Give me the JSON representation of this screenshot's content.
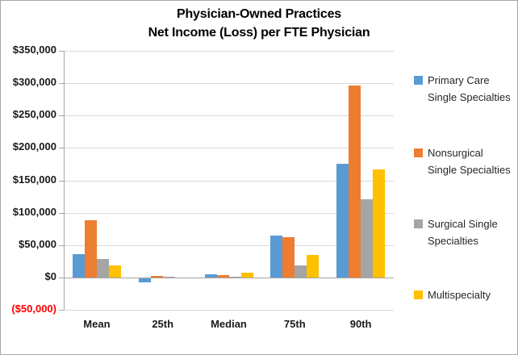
{
  "title": {
    "line1": "Physician-Owned Practices",
    "line2": "Net Income (Loss) per FTE Physician"
  },
  "y_axis": {
    "ticks": [
      {
        "label": "$350,000",
        "value": 350000
      },
      {
        "label": "$300,000",
        "value": 300000
      },
      {
        "label": "$250,000",
        "value": 250000
      },
      {
        "label": "$200,000",
        "value": 200000
      },
      {
        "label": "$150,000",
        "value": 150000
      },
      {
        "label": "$100,000",
        "value": 100000
      },
      {
        "label": "$50,000",
        "value": 50000
      },
      {
        "label": "$0",
        "value": 0
      },
      {
        "label": "($50,000)",
        "value": -50000
      }
    ],
    "negative_color": "#FF0000"
  },
  "legend": {
    "items": [
      {
        "label": "Primary Care Single Specialties",
        "lines": [
          "Primary Care",
          "Single Specialties"
        ],
        "color": "#5B9BD5"
      },
      {
        "label": "Nonsurgical Single Specialties",
        "lines": [
          "Nonsurgical",
          "Single Specialties"
        ],
        "color": "#ED7D31"
      },
      {
        "label": "Surgical Single Specialties",
        "lines": [
          "Surgical Single",
          "Specialties"
        ],
        "color": "#A5A5A5"
      },
      {
        "label": "Multispecialty",
        "lines": [
          "Multispecialty"
        ],
        "color": "#FFC000"
      }
    ]
  },
  "colors": {
    "series_blue": "#5B9BD5",
    "series_orange": "#ED7D31",
    "series_gray": "#A5A5A5",
    "series_yellow": "#FFC000",
    "gridline": "#D9D9D9",
    "axis": "#A6A6A6",
    "negative_label": "#FF0000"
  },
  "chart_data": {
    "type": "bar",
    "title": "Physician-Owned Practices Net Income (Loss) per FTE Physician",
    "categories": [
      "Mean",
      "25th",
      "Median",
      "75th",
      "90th"
    ],
    "series": [
      {
        "name": "Primary Care Single Specialties",
        "color": "#5B9BD5",
        "values": [
          36000,
          -8000,
          5000,
          65000,
          175000
        ]
      },
      {
        "name": "Nonsurgical Single Specialties",
        "color": "#ED7D31",
        "values": [
          88000,
          2000,
          3000,
          62000,
          297000
        ]
      },
      {
        "name": "Surgical Single Specialties",
        "color": "#A5A5A5",
        "values": [
          29000,
          500,
          1000,
          19000,
          121000
        ]
      },
      {
        "name": "Multispecialty",
        "color": "#FFC000",
        "values": [
          19000,
          -2000,
          7000,
          35000,
          167000
        ]
      }
    ],
    "xlabel": "",
    "ylabel": "",
    "ylim": [
      -50000,
      350000
    ],
    "ytick_step": 50000,
    "grid": true,
    "legend_position": "right"
  }
}
